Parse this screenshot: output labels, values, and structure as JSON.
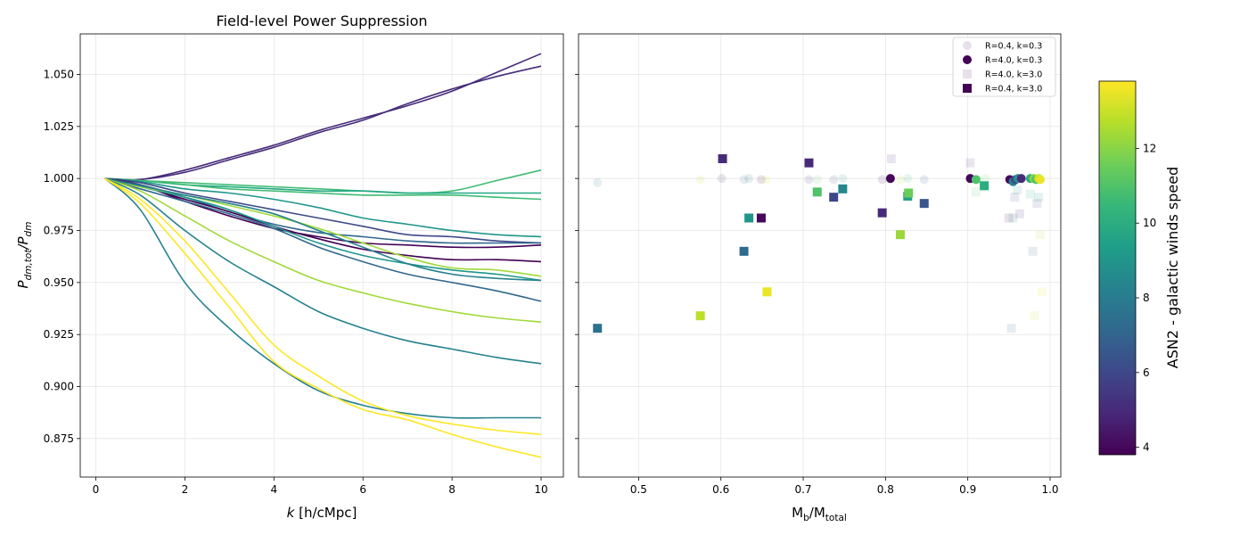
{
  "chart_data": [
    {
      "type": "line",
      "title": "Field-level Power Suppression",
      "xlabel": "k [h/cMpc]",
      "ylabel": "P_dm,tot / P_dm",
      "xlim": [
        -0.35,
        10.5
      ],
      "ylim": [
        0.8565,
        1.0695
      ],
      "xticks": [
        0,
        2,
        4,
        6,
        8,
        10
      ],
      "yticks": [
        0.875,
        0.9,
        0.925,
        0.95,
        0.975,
        1.0,
        1.025,
        1.05
      ],
      "ytick_labels": [
        "0.875",
        "0.900",
        "0.925",
        "0.950",
        "0.975",
        "1.000",
        "1.025",
        "1.050"
      ],
      "grid": true,
      "x": [
        0.2,
        1,
        2,
        3,
        4,
        5,
        6,
        7,
        8,
        9,
        10
      ],
      "series": [
        {
          "color": "#472c7a",
          "values": [
            1.0,
            0.9995,
            1.004,
            1.01,
            1.016,
            1.023,
            1.029,
            1.035,
            1.042,
            1.051,
            1.06
          ]
        },
        {
          "color": "#472c7a",
          "values": [
            1.0,
            0.9995,
            1.003,
            1.009,
            1.015,
            1.022,
            1.028,
            1.036,
            1.043,
            1.049,
            1.054
          ]
        },
        {
          "color": "#3fbc73",
          "values": [
            1.0,
            0.999,
            0.998,
            0.997,
            0.996,
            0.995,
            0.994,
            0.993,
            0.994,
            0.999,
            1.004
          ]
        },
        {
          "color": "#22a884",
          "values": [
            1.0,
            0.999,
            0.997,
            0.996,
            0.995,
            0.994,
            0.994,
            0.993,
            0.993,
            0.993,
            0.993
          ]
        },
        {
          "color": "#3fbc73",
          "values": [
            1.0,
            0.999,
            0.997,
            0.995,
            0.994,
            0.993,
            0.992,
            0.992,
            0.992,
            0.991,
            0.99
          ]
        },
        {
          "color": "#1f968b",
          "values": [
            1.0,
            0.9985,
            0.995,
            0.993,
            0.99,
            0.986,
            0.981,
            0.978,
            0.975,
            0.973,
            0.972
          ]
        },
        {
          "color": "#3e4a89",
          "values": [
            1.0,
            0.998,
            0.993,
            0.989,
            0.985,
            0.981,
            0.977,
            0.973,
            0.972,
            0.97,
            0.969
          ]
        },
        {
          "color": "#440154",
          "values": [
            1.0,
            0.997,
            0.989,
            0.982,
            0.976,
            0.972,
            0.969,
            0.968,
            0.967,
            0.967,
            0.968
          ]
        },
        {
          "color": "#31688e",
          "values": [
            1.0,
            0.997,
            0.991,
            0.984,
            0.978,
            0.974,
            0.972,
            0.97,
            0.969,
            0.969,
            0.969
          ]
        },
        {
          "color": "#440154",
          "values": [
            1.0,
            0.9965,
            0.99,
            0.984,
            0.977,
            0.971,
            0.966,
            0.963,
            0.961,
            0.961,
            0.96
          ]
        },
        {
          "color": "#1f968b",
          "values": [
            1.0,
            0.996,
            0.991,
            0.985,
            0.977,
            0.969,
            0.963,
            0.959,
            0.956,
            0.954,
            0.951
          ]
        },
        {
          "color": "#a0da39",
          "values": [
            1.0,
            0.996,
            0.992,
            0.987,
            0.982,
            0.976,
            0.969,
            0.962,
            0.957,
            0.956,
            0.953
          ]
        },
        {
          "color": "#26828e",
          "values": [
            1.0,
            0.9965,
            0.992,
            0.988,
            0.983,
            0.975,
            0.967,
            0.959,
            0.954,
            0.952,
            0.951
          ]
        },
        {
          "color": "#31688e",
          "values": [
            1.0,
            0.995,
            0.989,
            0.983,
            0.976,
            0.967,
            0.96,
            0.954,
            0.95,
            0.946,
            0.941
          ]
        },
        {
          "color": "#a0da39",
          "values": [
            1.0,
            0.994,
            0.982,
            0.97,
            0.96,
            0.951,
            0.945,
            0.94,
            0.936,
            0.933,
            0.931
          ]
        },
        {
          "color": "#26828e",
          "values": [
            1.0,
            0.992,
            0.975,
            0.96,
            0.948,
            0.936,
            0.928,
            0.922,
            0.918,
            0.914,
            0.911
          ]
        },
        {
          "color": "#26828e",
          "values": [
            1.0,
            0.985,
            0.95,
            0.928,
            0.911,
            0.898,
            0.891,
            0.887,
            0.885,
            0.885,
            0.885
          ]
        },
        {
          "color": "#fde725",
          "values": [
            1.0,
            0.988,
            0.964,
            0.938,
            0.912,
            0.899,
            0.889,
            0.884,
            0.877,
            0.871,
            0.866
          ]
        },
        {
          "color": "#fde725",
          "values": [
            1.0,
            0.99,
            0.97,
            0.945,
            0.92,
            0.905,
            0.893,
            0.886,
            0.882,
            0.879,
            0.877
          ]
        }
      ]
    },
    {
      "type": "scatter",
      "xlabel": "M_b/M_total",
      "xlim": [
        0.427,
        1.013
      ],
      "ylim": [
        0.8565,
        1.0695
      ],
      "xticks": [
        0.5,
        0.6,
        0.7,
        0.8,
        0.9,
        1.0
      ],
      "xtick_labels": [
        "0.5",
        "0.6",
        "0.7",
        "0.8",
        "0.9",
        "1.0"
      ],
      "shared_y": true,
      "grid": true,
      "legend": {
        "placement": "top-right",
        "entries": [
          {
            "label": "R=0.4, k=0.3",
            "marker": "circle",
            "color": "#440154",
            "alpha": 0.12
          },
          {
            "label": "R=4.0, k=0.3",
            "marker": "circle",
            "color": "#440154",
            "alpha": 1
          },
          {
            "label": "R=4.0, k=3.0",
            "marker": "square",
            "color": "#440154",
            "alpha": 0.12
          },
          {
            "label": "R=0.4, k=3.0",
            "marker": "square",
            "color": "#440154",
            "alpha": 1
          }
        ]
      },
      "groups": [
        {
          "name": "R=0.4, k=0.3",
          "marker": "circle",
          "alpha": 0.12,
          "points": [
            {
              "x": 0.45,
              "y": 0.998,
              "c": 8
            },
            {
              "x": 0.575,
              "y": 0.9995,
              "c": 13
            },
            {
              "x": 0.601,
              "y": 1.0,
              "c": 5
            },
            {
              "x": 0.628,
              "y": 0.9995,
              "c": 7
            },
            {
              "x": 0.634,
              "y": 1.0,
              "c": 8
            },
            {
              "x": 0.649,
              "y": 0.9995,
              "c": 4
            },
            {
              "x": 0.655,
              "y": 0.9995,
              "c": 13.5
            },
            {
              "x": 0.707,
              "y": 0.9995,
              "c": 5
            },
            {
              "x": 0.717,
              "y": 0.9995,
              "c": 11
            },
            {
              "x": 0.737,
              "y": 0.9995,
              "c": 6
            },
            {
              "x": 0.748,
              "y": 1.0,
              "c": 9
            },
            {
              "x": 0.796,
              "y": 0.9995,
              "c": 4
            },
            {
              "x": 0.806,
              "y": 1.0,
              "c": 5
            },
            {
              "x": 0.818,
              "y": 0.9995,
              "c": 12.5
            },
            {
              "x": 0.827,
              "y": 1.0,
              "c": 10
            },
            {
              "x": 0.847,
              "y": 0.9995,
              "c": 7
            },
            {
              "x": 0.903,
              "y": 1.0,
              "c": 5
            },
            {
              "x": 0.913,
              "y": 0.9995,
              "c": 11
            },
            {
              "x": 0.922,
              "y": 1.0,
              "c": 11.5
            },
            {
              "x": 0.96,
              "y": 0.9995,
              "c": 9
            },
            {
              "x": 0.975,
              "y": 1.0,
              "c": 12
            },
            {
              "x": 0.982,
              "y": 0.9995,
              "c": 13
            },
            {
              "x": 0.988,
              "y": 1.0,
              "c": 13.5
            }
          ]
        },
        {
          "name": "R=4.0, k=0.3",
          "marker": "circle",
          "alpha": 1,
          "points": [
            {
              "x": 0.806,
              "y": 1.0,
              "c": 4
            },
            {
              "x": 0.903,
              "y": 1.0,
              "c": 4
            },
            {
              "x": 0.91,
              "y": 0.9995,
              "c": 11
            },
            {
              "x": 0.951,
              "y": 0.9995,
              "c": 4
            },
            {
              "x": 0.955,
              "y": 0.9985,
              "c": 8
            },
            {
              "x": 0.958,
              "y": 0.9995,
              "c": 6
            },
            {
              "x": 0.961,
              "y": 1.0,
              "c": 9
            },
            {
              "x": 0.965,
              "y": 1.0,
              "c": 5
            },
            {
              "x": 0.976,
              "y": 1.0,
              "c": 10
            },
            {
              "x": 0.98,
              "y": 1.0,
              "c": 12
            },
            {
              "x": 0.983,
              "y": 0.9995,
              "c": 11
            },
            {
              "x": 0.986,
              "y": 1.0,
              "c": 13
            },
            {
              "x": 0.988,
              "y": 0.9995,
              "c": 13.5
            }
          ]
        },
        {
          "name": "R=4.0, k=3.0",
          "marker": "square",
          "alpha": 0.12,
          "points": [
            {
              "x": 0.807,
              "y": 1.0095,
              "c": 5
            },
            {
              "x": 0.903,
              "y": 1.0075,
              "c": 5
            },
            {
              "x": 0.91,
              "y": 0.9935,
              "c": 11
            },
            {
              "x": 0.92,
              "y": 0.9965,
              "c": 10
            },
            {
              "x": 0.95,
              "y": 0.981,
              "c": 4
            },
            {
              "x": 0.953,
              "y": 0.928,
              "c": 7
            },
            {
              "x": 0.955,
              "y": 0.981,
              "c": 8
            },
            {
              "x": 0.957,
              "y": 0.991,
              "c": 6
            },
            {
              "x": 0.96,
              "y": 0.9945,
              "c": 9
            },
            {
              "x": 0.963,
              "y": 0.983,
              "c": 5
            },
            {
              "x": 0.976,
              "y": 0.9925,
              "c": 10
            },
            {
              "x": 0.979,
              "y": 0.965,
              "c": 7
            },
            {
              "x": 0.981,
              "y": 0.934,
              "c": 13
            },
            {
              "x": 0.984,
              "y": 0.988,
              "c": 6
            },
            {
              "x": 0.986,
              "y": 0.991,
              "c": 9
            },
            {
              "x": 0.988,
              "y": 0.973,
              "c": 12.5
            },
            {
              "x": 0.99,
              "y": 0.9455,
              "c": 13.5
            }
          ]
        },
        {
          "name": "R=0.4, k=3.0",
          "marker": "square",
          "alpha": 1,
          "points": [
            {
              "x": 0.45,
              "y": 0.928,
              "c": 7.5
            },
            {
              "x": 0.575,
              "y": 0.934,
              "c": 12.8
            },
            {
              "x": 0.602,
              "y": 1.0095,
              "c": 5
            },
            {
              "x": 0.628,
              "y": 0.965,
              "c": 7.2
            },
            {
              "x": 0.634,
              "y": 0.981,
              "c": 9
            },
            {
              "x": 0.649,
              "y": 0.981,
              "c": 4
            },
            {
              "x": 0.656,
              "y": 0.9455,
              "c": 13.5
            },
            {
              "x": 0.707,
              "y": 1.0075,
              "c": 5
            },
            {
              "x": 0.717,
              "y": 0.9935,
              "c": 11
            },
            {
              "x": 0.737,
              "y": 0.991,
              "c": 6
            },
            {
              "x": 0.748,
              "y": 0.995,
              "c": 8.5
            },
            {
              "x": 0.796,
              "y": 0.9835,
              "c": 5
            },
            {
              "x": 0.818,
              "y": 0.973,
              "c": 12.3
            },
            {
              "x": 0.827,
              "y": 0.9915,
              "c": 9.5
            },
            {
              "x": 0.828,
              "y": 0.993,
              "c": 11.5
            },
            {
              "x": 0.847,
              "y": 0.988,
              "c": 6.5
            },
            {
              "x": 0.92,
              "y": 0.9965,
              "c": 10
            }
          ]
        }
      ]
    }
  ],
  "colorbar": {
    "label": "ASN2 - galactic winds speed",
    "range": [
      3.8,
      13.8
    ],
    "ticks": [
      4,
      6,
      8,
      10,
      12
    ],
    "tick_labels": [
      "4",
      "6",
      "8",
      "10",
      "12"
    ],
    "colormap": "viridis",
    "stops": [
      "#440154",
      "#482878",
      "#3e4989",
      "#31688e",
      "#26828e",
      "#1f9e89",
      "#35b779",
      "#6ece58",
      "#b5de2b",
      "#fde725"
    ]
  }
}
